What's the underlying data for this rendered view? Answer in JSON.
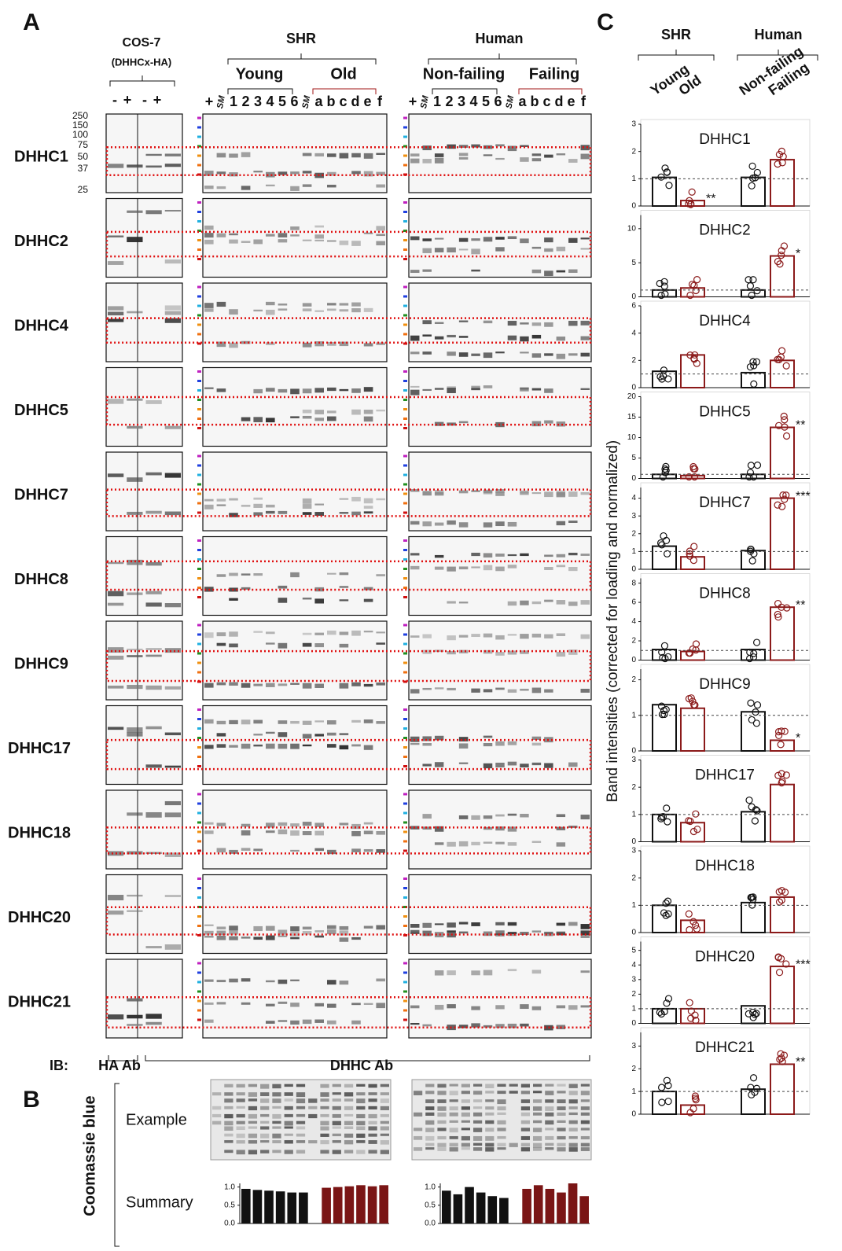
{
  "panel_a": {
    "label": "A",
    "cos7": "COS-7",
    "cos7_sub": "(DHHCx-HA)",
    "cos7_lanes": [
      "-",
      "+",
      "-",
      "+"
    ],
    "markers": [
      "250",
      "150",
      "100",
      "75",
      "50",
      "37",
      "25"
    ],
    "marker_colors": [
      "#c020c0",
      "#2040e0",
      "#20b0e0",
      "#209020",
      "#f09010",
      "#f07010",
      "#d01010"
    ],
    "shr": "SHR",
    "young": "Young",
    "old": "Old",
    "human": "Human",
    "nonfailing": "Non-failing",
    "failing": "Failing",
    "shr_lanes": [
      "+",
      "SM",
      "1",
      "2",
      "3",
      "4",
      "5",
      "6",
      "SM",
      "a",
      "b",
      "c",
      "d",
      "e",
      "f"
    ],
    "human_lanes": [
      "+",
      "SM",
      "1",
      "2",
      "3",
      "4",
      "5",
      "6",
      "SM",
      "a",
      "b",
      "c",
      "d",
      "e",
      "f"
    ],
    "rows": [
      "DHHC1",
      "DHHC2",
      "DHHC4",
      "DHHC5",
      "DHHC7",
      "DHHC8",
      "DHHC9",
      "DHHC17",
      "DHHC18",
      "DHHC20",
      "DHHC21"
    ],
    "ib": "IB:",
    "ha_ab": "HA Ab",
    "dhhc_ab": "DHHC Ab"
  },
  "panel_b": {
    "label": "B",
    "side": "Coomassie blue",
    "example": "Example",
    "summary": "Summary",
    "charts": [
      {
        "type": "bar",
        "ylim": [
          0,
          1.1
        ],
        "yticks": [
          {
            "value": 0,
            "label": "0.0"
          },
          {
            "value": 0.5,
            "label": "0.5"
          },
          {
            "value": 1,
            "label": "1.0"
          }
        ],
        "series": [
          {
            "color": "#111111",
            "values": [
              0.95,
              0.92,
              0.9,
              0.88,
              0.85,
              0.85
            ]
          },
          {
            "color": "#7a1515",
            "values": [
              0.98,
              1.0,
              1.02,
              1.05,
              1.02,
              1.05
            ]
          }
        ]
      },
      {
        "type": "bar",
        "ylim": [
          0,
          1.1
        ],
        "yticks": [
          {
            "value": 0,
            "label": "0.0"
          },
          {
            "value": 0.5,
            "label": "0.5"
          },
          {
            "value": 1,
            "label": "1.0"
          }
        ],
        "series": [
          {
            "color": "#111111",
            "values": [
              0.9,
              0.8,
              1.0,
              0.85,
              0.75,
              0.7
            ]
          },
          {
            "color": "#7a1515",
            "values": [
              0.95,
              1.05,
              0.95,
              0.85,
              1.1,
              0.75
            ]
          }
        ]
      }
    ]
  },
  "panel_c": {
    "label": "C",
    "shr": "SHR",
    "human": "Human",
    "groups": [
      "Young",
      "Old",
      "Non-failing",
      "Failing"
    ],
    "group_colors": [
      "#111111",
      "#8b1a1a",
      "#111111",
      "#8b1a1a"
    ],
    "reference": 1,
    "ylabel": "Band intensities (corrected for loading and normalized)",
    "charts": [
      {
        "type": "bar",
        "title": "DHHC1",
        "ylim": [
          0,
          3
        ],
        "yticks": [
          0,
          1,
          2,
          3
        ],
        "values": [
          1.05,
          0.2,
          1.05,
          1.7
        ],
        "annotations": [
          {
            "index": 1,
            "text": "**"
          }
        ]
      },
      {
        "type": "bar",
        "title": "DHHC2",
        "ylim": [
          0,
          12
        ],
        "yticks": [
          0,
          5,
          10
        ],
        "values": [
          1,
          1.3,
          1,
          6
        ],
        "annotations": [
          {
            "index": 3,
            "text": "*"
          }
        ]
      },
      {
        "type": "bar",
        "title": "DHHC4",
        "ylim": [
          0,
          6
        ],
        "yticks": [
          0,
          2,
          4,
          6
        ],
        "values": [
          1.2,
          2.4,
          1.1,
          2.0
        ],
        "annotations": []
      },
      {
        "type": "bar",
        "title": "DHHC5",
        "ylim": [
          0,
          20
        ],
        "yticks": [
          0,
          5,
          10,
          15,
          20
        ],
        "values": [
          1,
          0.7,
          1,
          12.5
        ],
        "annotations": [
          {
            "index": 3,
            "text": "**"
          }
        ]
      },
      {
        "type": "bar",
        "title": "DHHC7",
        "ylim": [
          0,
          4.6
        ],
        "yticks": [
          0,
          1,
          2,
          3,
          4
        ],
        "values": [
          1.3,
          0.7,
          1.05,
          4.0
        ],
        "annotations": [
          {
            "index": 3,
            "text": "***"
          }
        ]
      },
      {
        "type": "bar",
        "title": "DHHC8",
        "ylim": [
          0,
          8.5
        ],
        "yticks": [
          0,
          2,
          4,
          6,
          8
        ],
        "values": [
          1.1,
          0.9,
          1.1,
          5.5
        ],
        "annotations": [
          {
            "index": 3,
            "text": "**"
          }
        ]
      },
      {
        "type": "bar",
        "title": "DHHC9",
        "ylim": [
          0,
          2.3
        ],
        "yticks": [
          0,
          1,
          2
        ],
        "values": [
          1.3,
          1.2,
          1.1,
          0.3
        ],
        "annotations": [
          {
            "index": 3,
            "text": "*"
          }
        ]
      },
      {
        "type": "bar",
        "title": "DHHC17",
        "ylim": [
          0,
          3
        ],
        "yticks": [
          0,
          1,
          2,
          3
        ],
        "values": [
          1.0,
          0.7,
          1.1,
          2.1
        ],
        "annotations": []
      },
      {
        "type": "bar",
        "title": "DHHC18",
        "ylim": [
          0,
          3
        ],
        "yticks": [
          0,
          1,
          2,
          3
        ],
        "values": [
          1.0,
          0.45,
          1.1,
          1.3
        ],
        "annotations": []
      },
      {
        "type": "bar",
        "title": "DHHC20",
        "ylim": [
          0,
          5.6
        ],
        "yticks": [
          0,
          1,
          2,
          3,
          4,
          5
        ],
        "values": [
          1.0,
          1.0,
          1.2,
          3.9
        ],
        "annotations": [
          {
            "index": 3,
            "text": "***"
          }
        ]
      },
      {
        "type": "bar",
        "title": "DHHC21",
        "ylim": [
          0,
          3.6
        ],
        "yticks": [
          0,
          1,
          2,
          3
        ],
        "values": [
          1.0,
          0.4,
          1.1,
          2.2
        ],
        "annotations": [
          {
            "index": 3,
            "text": "**"
          }
        ]
      }
    ]
  }
}
